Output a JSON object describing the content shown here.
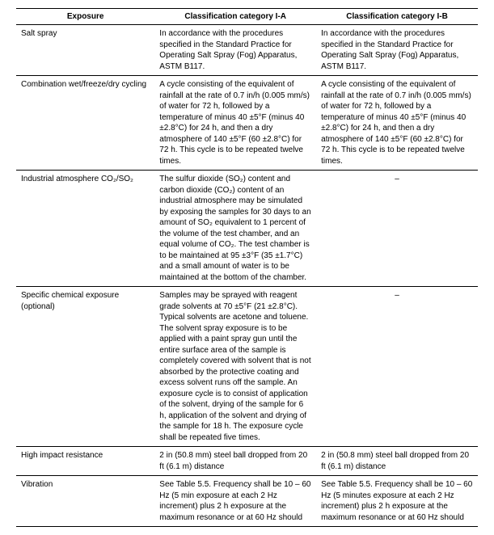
{
  "columns": [
    "Exposure",
    "Classification category I-A",
    "Classification category I-B"
  ],
  "rows": [
    {
      "exposure": "Salt spray",
      "catA": "In accordance with the procedures specified in the Standard Practice for Operating Salt Spray (Fog) Apparatus, ASTM B117.",
      "catB": "In accordance with the procedures specified in the Standard Practice for Operating Salt Spray (Fog) Apparatus, ASTM B117."
    },
    {
      "exposure": "Combination wet/freeze/dry cycling",
      "catA": "A cycle consisting of the equivalent of rainfall at the rate of 0.7 in/h (0.005 mm/s) of water for 72 h, followed by a temperature of minus 40 ±5°F (minus 40 ±2.8°C) for 24 h, and then a dry atmosphere of 140 ±5°F (60 ±2.8°C) for 72 h. This cycle is to be repeated twelve times.",
      "catB": "A cycle consisting of the equivalent of rainfall at the rate of 0.7 in/h (0.005 mm/s) of water for 72 h, followed by a temperature of minus 40 ±5°F (minus 40 ±2.8°C) for 24 h, and then a dry atmosphere of 140 ±5°F (60 ±2.8°C) for 72 h. This cycle is to be repeated twelve times."
    },
    {
      "exposure": "Industrial atmosphere CO₂/SO₂",
      "catA": "The sulfur dioxide (SO₂) content and carbon dioxide (CO₂) content of an industrial atmosphere may be simulated by exposing the samples for 30 days to an amount of SO₂ equivalent to 1 percent of the volume of the test chamber, and an equal volume of CO₂. The test chamber is to be maintained at 95 ±3°F (35 ±1.7°C) and a small amount of water is to be maintained at the bottom of the chamber.",
      "catB": "–",
      "centerB": true
    },
    {
      "exposure": "Specific chemical exposure (optional)",
      "catA": "Samples may be sprayed with reagent grade solvents at 70 ±5°F (21 ±2.8°C). Typical solvents are acetone and toluene. The solvent spray exposure is to be applied with a paint spray gun until the entire surface area of the sample is completely covered with solvent that is not absorbed by the protective coating and excess solvent runs off the sample. An exposure cycle is to consist of application of the solvent, drying of the sample for 6 h, application of the solvent and drying of the sample for 18 h. The exposure cycle shall be repeated five times.",
      "catB": "–",
      "centerB": true
    },
    {
      "exposure": "High impact resistance",
      "catA": "2 in (50.8 mm) steel ball dropped from 20 ft (6.1 m) distance",
      "catB": "2 in (50.8 mm) steel ball dropped from 20 ft (6.1 m) distance"
    },
    {
      "exposure": "Vibration",
      "catA": "See Table 5.5. Frequency shall be 10 – 60 Hz (5 min exposure at each 2 Hz increment) plus 2 h exposure at the maximum resonance or at 60 Hz should",
      "catB": "See Table 5.5. Frequency shall be 10 – 60 Hz (5 minutes exposure at each 2 Hz increment) plus 2 h exposure at the maximum resonance or at 60 Hz should"
    }
  ]
}
